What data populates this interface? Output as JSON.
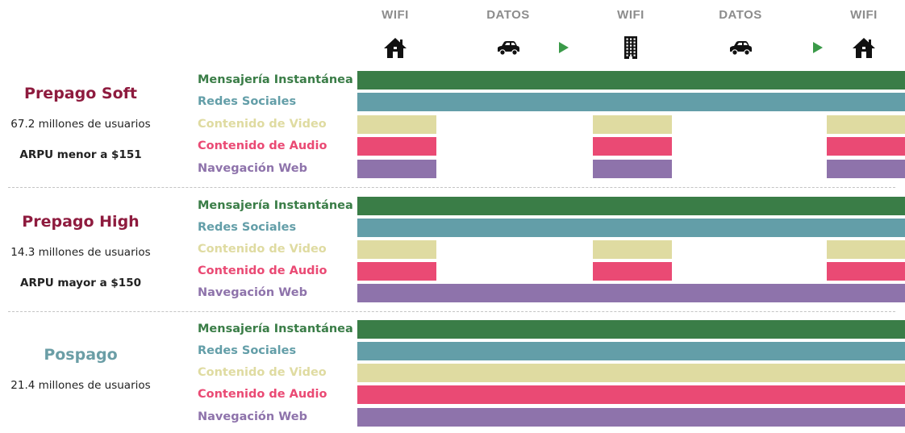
{
  "chart_data": {
    "type": "timeline",
    "columns": [
      {
        "label": "WIFI",
        "icon": "house-icon"
      },
      {
        "label": "DATOS",
        "icon": "car-icon"
      },
      {
        "label": "WIFI",
        "icon": "office-building-icon"
      },
      {
        "label": "DATOS",
        "icon": "car-icon"
      },
      {
        "label": "WIFI",
        "icon": "house-icon"
      }
    ],
    "transition_markers": [
      "play-arrow-icon",
      "play-arrow-icon"
    ],
    "categories": [
      {
        "name": "Mensajería Instantánea",
        "color": "#3a7d47"
      },
      {
        "name": "Redes Sociales",
        "color": "#639ea8"
      },
      {
        "name": "Contenido de Video",
        "color": "#dfdba1"
      },
      {
        "name": "Contenido de Audio",
        "color": "#ea4a74"
      },
      {
        "name": "Navegación Web",
        "color": "#8e73ab"
      }
    ],
    "groups": [
      {
        "title": "Prepago Soft",
        "title_color": "#8e1b3e",
        "lines": [
          "67.2 millones de usuarios",
          "ARPU menor a $151"
        ],
        "usage": [
          [
            1,
            1,
            1,
            1,
            1
          ],
          [
            1,
            1,
            1,
            1,
            1
          ],
          [
            1,
            0,
            1,
            0,
            1
          ],
          [
            1,
            0,
            1,
            0,
            1
          ],
          [
            1,
            0,
            1,
            0,
            1
          ]
        ]
      },
      {
        "title": "Prepago High",
        "title_color": "#8e1b3e",
        "lines": [
          "14.3 millones de usuarios",
          "ARPU mayor a $150"
        ],
        "usage": [
          [
            1,
            1,
            1,
            1,
            1
          ],
          [
            1,
            1,
            1,
            1,
            1
          ],
          [
            1,
            0,
            1,
            0,
            1
          ],
          [
            1,
            0,
            1,
            0,
            1
          ],
          [
            1,
            1,
            1,
            1,
            1
          ]
        ]
      },
      {
        "title": "Pospago",
        "title_color": "#6b9ea6",
        "lines": [
          "21.4 millones de usuarios"
        ],
        "usage": [
          [
            1,
            1,
            1,
            1,
            1
          ],
          [
            1,
            1,
            1,
            1,
            1
          ],
          [
            1,
            1,
            1,
            1,
            1
          ],
          [
            1,
            1,
            1,
            1,
            1
          ],
          [
            1,
            1,
            1,
            1,
            1
          ]
        ]
      }
    ]
  }
}
